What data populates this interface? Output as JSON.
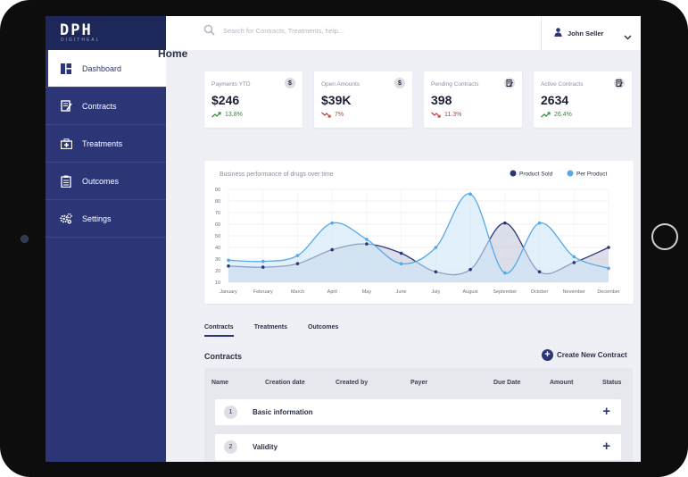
{
  "brand": {
    "logo": "DPH",
    "logo_sub": "DIGITHEAL"
  },
  "sidebar": {
    "items": [
      {
        "label": "Dashboard",
        "icon": "dashboard-icon",
        "active": true
      },
      {
        "label": "Contracts",
        "icon": "contract-icon"
      },
      {
        "label": "Treatments",
        "icon": "medical-kit-icon"
      },
      {
        "label": "Outcomes",
        "icon": "clipboard-icon"
      },
      {
        "label": "Settings",
        "icon": "gears-icon"
      }
    ]
  },
  "topbar": {
    "search_placeholder": "Search for Contracts, Treatments, help...",
    "user_name": "John Seller"
  },
  "page": {
    "title": "Home"
  },
  "kpis": [
    {
      "label": "Payments YTD",
      "value": "$246",
      "change": "13.8%",
      "trend": "up",
      "icon": "dollar-icon",
      "icon_glyph": "$"
    },
    {
      "label": "Open Amounts",
      "value": "$39K",
      "change": "7%",
      "trend": "down",
      "icon": "dollar-icon",
      "icon_glyph": "$"
    },
    {
      "label": "Pending Contracts",
      "value": "398",
      "change": "11.3%",
      "trend": "down",
      "icon": "document-icon",
      "icon_glyph": ""
    },
    {
      "label": "Active Contracts",
      "value": "2634",
      "change": "26.4%",
      "trend": "up",
      "icon": "document-icon",
      "icon_glyph": ""
    }
  ],
  "chart_data": {
    "type": "area",
    "title": "Business performance of drugs over time",
    "categories": [
      "January",
      "February",
      "March",
      "April",
      "May",
      "June",
      "July",
      "August",
      "September",
      "October",
      "November",
      "December"
    ],
    "y_ticks": [
      10,
      20,
      30,
      40,
      50,
      60,
      70,
      80,
      90
    ],
    "ylim": [
      10,
      90
    ],
    "legend_position": "top-right",
    "series": [
      {
        "name": "Product Sold",
        "color": "#2c3677",
        "fill": "#c4cadb",
        "values": [
          24,
          23,
          26,
          38,
          43,
          35,
          19,
          21,
          61,
          19,
          27,
          40
        ]
      },
      {
        "name": "Per Product",
        "color": "#55a9e6",
        "fill": "#cfe6f8",
        "values": [
          29,
          28,
          33,
          61,
          47,
          26,
          40,
          86,
          18,
          61,
          32,
          22
        ]
      }
    ]
  },
  "tabs": [
    "Contracts",
    "Treatments",
    "Outcomes"
  ],
  "contracts": {
    "title": "Contracts",
    "create_label": "Create New Contract",
    "columns": [
      "Name",
      "Creation date",
      "Created by",
      "Payer",
      "Due Date",
      "Amount",
      "Status"
    ],
    "rows": [
      {
        "num": "1",
        "label": "Basic information"
      },
      {
        "num": "2",
        "label": "Validity"
      }
    ]
  },
  "colors": {
    "sidebar": "#2c3677",
    "accent": "#2c3677",
    "up": "#2f8a35",
    "down": "#c33a3a"
  }
}
